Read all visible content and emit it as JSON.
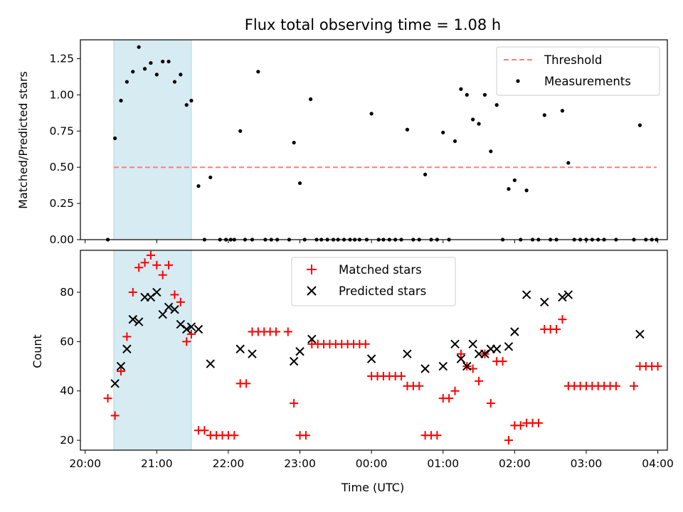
{
  "title": "Flux total observing time = 1.08 h",
  "chart_data": [
    {
      "type": "scatter",
      "ylabel": "Matched/Predicted stars",
      "xlabel": "",
      "xlim": [
        "20:00",
        "04:00"
      ],
      "ylim": [
        0,
        1.38
      ],
      "yticks": [
        "0.00",
        "0.25",
        "0.50",
        "0.75",
        "1.00",
        "1.25"
      ],
      "legend_position": "upper-right",
      "highlight_span": {
        "start": "20:24",
        "end": "21:29",
        "color": "#add8e6"
      },
      "threshold": {
        "name": "Threshold",
        "value": 0.5,
        "x_start": "20:24",
        "x_end": "03:59",
        "color": "#ff7f7f"
      },
      "series": [
        {
          "name": "Measurements",
          "color": "#000000",
          "marker": "dot",
          "points": [
            [
              "20:19",
              0.0
            ],
            [
              "20:25",
              0.7
            ],
            [
              "20:30",
              0.96
            ],
            [
              "20:35",
              1.09
            ],
            [
              "20:40",
              1.16
            ],
            [
              "20:45",
              1.33
            ],
            [
              "20:50",
              1.18
            ],
            [
              "20:55",
              1.22
            ],
            [
              "21:00",
              1.14
            ],
            [
              "21:05",
              1.23
            ],
            [
              "21:10",
              1.23
            ],
            [
              "21:15",
              1.09
            ],
            [
              "21:20",
              1.14
            ],
            [
              "21:25",
              0.93
            ],
            [
              "21:29",
              0.96
            ],
            [
              "21:35",
              0.37
            ],
            [
              "21:40",
              0.0
            ],
            [
              "21:45",
              0.43
            ],
            [
              "21:53",
              0.0
            ],
            [
              "21:58",
              0.0
            ],
            [
              "22:02",
              0.0
            ],
            [
              "22:05",
              0.0
            ],
            [
              "22:10",
              0.75
            ],
            [
              "22:14",
              0.0
            ],
            [
              "22:20",
              0.0
            ],
            [
              "22:25",
              1.16
            ],
            [
              "22:31",
              0.0
            ],
            [
              "22:36",
              0.0
            ],
            [
              "22:41",
              0.0
            ],
            [
              "22:51",
              0.0
            ],
            [
              "22:55",
              0.67
            ],
            [
              "23:00",
              0.39
            ],
            [
              "23:04",
              0.0
            ],
            [
              "23:09",
              0.97
            ],
            [
              "23:14",
              0.0
            ],
            [
              "23:18",
              0.0
            ],
            [
              "23:23",
              0.0
            ],
            [
              "23:28",
              0.0
            ],
            [
              "23:32",
              0.0
            ],
            [
              "23:37",
              0.0
            ],
            [
              "23:42",
              0.0
            ],
            [
              "23:46",
              0.0
            ],
            [
              "23:50",
              0.0
            ],
            [
              "23:56",
              0.0
            ],
            [
              "24:00",
              0.87
            ],
            [
              "24:06",
              0.0
            ],
            [
              "24:10",
              0.0
            ],
            [
              "24:15",
              0.0
            ],
            [
              "24:20",
              0.0
            ],
            [
              "24:25",
              0.0
            ],
            [
              "24:30",
              0.76
            ],
            [
              "24:35",
              0.0
            ],
            [
              "24:40",
              0.0
            ],
            [
              "24:45",
              0.45
            ],
            [
              "24:50",
              0.0
            ],
            [
              "24:55",
              0.0
            ],
            [
              "25:00",
              0.74
            ],
            [
              "25:05",
              0.0
            ],
            [
              "25:10",
              0.68
            ],
            [
              "25:15",
              1.04
            ],
            [
              "25:20",
              1.0
            ],
            [
              "25:25",
              0.83
            ],
            [
              "25:30",
              0.8
            ],
            [
              "25:35",
              1.0
            ],
            [
              "25:40",
              0.61
            ],
            [
              "25:45",
              0.93
            ],
            [
              "25:50",
              0.0
            ],
            [
              "25:55",
              0.35
            ],
            [
              "26:00",
              0.41
            ],
            [
              "26:05",
              0.0
            ],
            [
              "26:10",
              0.34
            ],
            [
              "26:15",
              0.0
            ],
            [
              "26:20",
              0.0
            ],
            [
              "26:25",
              0.86
            ],
            [
              "26:30",
              0.0
            ],
            [
              "26:35",
              0.0
            ],
            [
              "26:40",
              0.89
            ],
            [
              "26:45",
              0.53
            ],
            [
              "26:50",
              0.0
            ],
            [
              "26:55",
              0.0
            ],
            [
              "27:00",
              0.0
            ],
            [
              "27:05",
              0.0
            ],
            [
              "27:10",
              0.0
            ],
            [
              "27:15",
              0.0
            ],
            [
              "27:25",
              0.0
            ],
            [
              "27:40",
              0.0
            ],
            [
              "27:45",
              0.79
            ],
            [
              "27:50",
              0.0
            ],
            [
              "27:55",
              0.0
            ],
            [
              "27:59",
              0.0
            ]
          ]
        }
      ]
    },
    {
      "type": "scatter",
      "ylabel": "Count",
      "xlabel": "Time (UTC)",
      "xlim": [
        "20:00",
        "04:00"
      ],
      "ylim": [
        16,
        97
      ],
      "yticks": [
        "20",
        "40",
        "60",
        "80"
      ],
      "xticks": [
        "20:00",
        "21:00",
        "22:00",
        "23:00",
        "00:00",
        "01:00",
        "02:00",
        "03:00",
        "04:00"
      ],
      "legend_position": "upper-center",
      "highlight_span": {
        "start": "20:24",
        "end": "21:29",
        "color": "#add8e6"
      },
      "series": [
        {
          "name": "Matched stars",
          "color": "#ff0000",
          "marker": "plus",
          "points": [
            [
              "20:19",
              37
            ],
            [
              "20:25",
              30
            ],
            [
              "20:30",
              48
            ],
            [
              "20:35",
              62
            ],
            [
              "20:40",
              80
            ],
            [
              "20:45",
              90
            ],
            [
              "20:50",
              92
            ],
            [
              "20:55",
              95
            ],
            [
              "21:00",
              91
            ],
            [
              "21:05",
              87
            ],
            [
              "21:10",
              91
            ],
            [
              "21:15",
              79
            ],
            [
              "21:20",
              76
            ],
            [
              "21:25",
              60
            ],
            [
              "21:29",
              63
            ],
            [
              "21:35",
              24
            ],
            [
              "21:40",
              24
            ],
            [
              "21:45",
              22
            ],
            [
              "21:50",
              22
            ],
            [
              "21:55",
              22
            ],
            [
              "22:00",
              22
            ],
            [
              "22:05",
              22
            ],
            [
              "22:10",
              43
            ],
            [
              "22:15",
              43
            ],
            [
              "22:20",
              64
            ],
            [
              "22:25",
              64
            ],
            [
              "22:30",
              64
            ],
            [
              "22:35",
              64
            ],
            [
              "22:40",
              64
            ],
            [
              "22:50",
              64
            ],
            [
              "22:55",
              35
            ],
            [
              "23:00",
              22
            ],
            [
              "23:05",
              22
            ],
            [
              "23:10",
              59
            ],
            [
              "23:15",
              59
            ],
            [
              "23:20",
              59
            ],
            [
              "23:25",
              59
            ],
            [
              "23:30",
              59
            ],
            [
              "23:35",
              59
            ],
            [
              "23:40",
              59
            ],
            [
              "23:45",
              59
            ],
            [
              "23:50",
              59
            ],
            [
              "23:55",
              59
            ],
            [
              "24:00",
              46
            ],
            [
              "24:05",
              46
            ],
            [
              "24:10",
              46
            ],
            [
              "24:15",
              46
            ],
            [
              "24:20",
              46
            ],
            [
              "24:25",
              46
            ],
            [
              "24:30",
              42
            ],
            [
              "24:35",
              42
            ],
            [
              "24:40",
              42
            ],
            [
              "24:45",
              22
            ],
            [
              "24:50",
              22
            ],
            [
              "24:55",
              22
            ],
            [
              "25:00",
              37
            ],
            [
              "25:05",
              37
            ],
            [
              "25:10",
              40
            ],
            [
              "25:15",
              55
            ],
            [
              "25:20",
              50
            ],
            [
              "25:25",
              49
            ],
            [
              "25:30",
              44
            ],
            [
              "25:35",
              55
            ],
            [
              "25:40",
              35
            ],
            [
              "25:45",
              52
            ],
            [
              "25:50",
              52
            ],
            [
              "25:55",
              20
            ],
            [
              "26:00",
              26
            ],
            [
              "26:05",
              26
            ],
            [
              "26:10",
              27
            ],
            [
              "26:15",
              27
            ],
            [
              "26:20",
              27
            ],
            [
              "26:25",
              65
            ],
            [
              "26:30",
              65
            ],
            [
              "26:35",
              65
            ],
            [
              "26:40",
              69
            ],
            [
              "26:45",
              42
            ],
            [
              "26:50",
              42
            ],
            [
              "26:55",
              42
            ],
            [
              "27:00",
              42
            ],
            [
              "27:05",
              42
            ],
            [
              "27:10",
              42
            ],
            [
              "27:15",
              42
            ],
            [
              "27:20",
              42
            ],
            [
              "27:25",
              42
            ],
            [
              "27:40",
              42
            ],
            [
              "27:45",
              50
            ],
            [
              "27:50",
              50
            ],
            [
              "27:55",
              50
            ],
            [
              "28:00",
              50
            ]
          ]
        },
        {
          "name": "Predicted stars",
          "color": "#000000",
          "marker": "x",
          "points": [
            [
              "20:25",
              43
            ],
            [
              "20:30",
              50
            ],
            [
              "20:35",
              57
            ],
            [
              "20:40",
              69
            ],
            [
              "20:45",
              68
            ],
            [
              "20:50",
              78
            ],
            [
              "20:55",
              78
            ],
            [
              "21:00",
              80
            ],
            [
              "21:05",
              71
            ],
            [
              "21:10",
              74
            ],
            [
              "21:15",
              73
            ],
            [
              "21:20",
              67
            ],
            [
              "21:25",
              65
            ],
            [
              "21:29",
              66
            ],
            [
              "21:35",
              65
            ],
            [
              "21:45",
              51
            ],
            [
              "22:10",
              57
            ],
            [
              "22:20",
              55
            ],
            [
              "22:55",
              52
            ],
            [
              "23:00",
              56
            ],
            [
              "23:10",
              61
            ],
            [
              "24:00",
              53
            ],
            [
              "24:30",
              55
            ],
            [
              "24:45",
              49
            ],
            [
              "25:00",
              50
            ],
            [
              "25:10",
              59
            ],
            [
              "25:15",
              53
            ],
            [
              "25:20",
              50
            ],
            [
              "25:25",
              59
            ],
            [
              "25:30",
              55
            ],
            [
              "25:35",
              55
            ],
            [
              "25:40",
              57
            ],
            [
              "25:45",
              57
            ],
            [
              "25:55",
              58
            ],
            [
              "26:00",
              64
            ],
            [
              "26:10",
              79
            ],
            [
              "26:25",
              76
            ],
            [
              "26:40",
              78
            ],
            [
              "26:45",
              79
            ],
            [
              "27:45",
              63
            ]
          ]
        }
      ]
    }
  ]
}
